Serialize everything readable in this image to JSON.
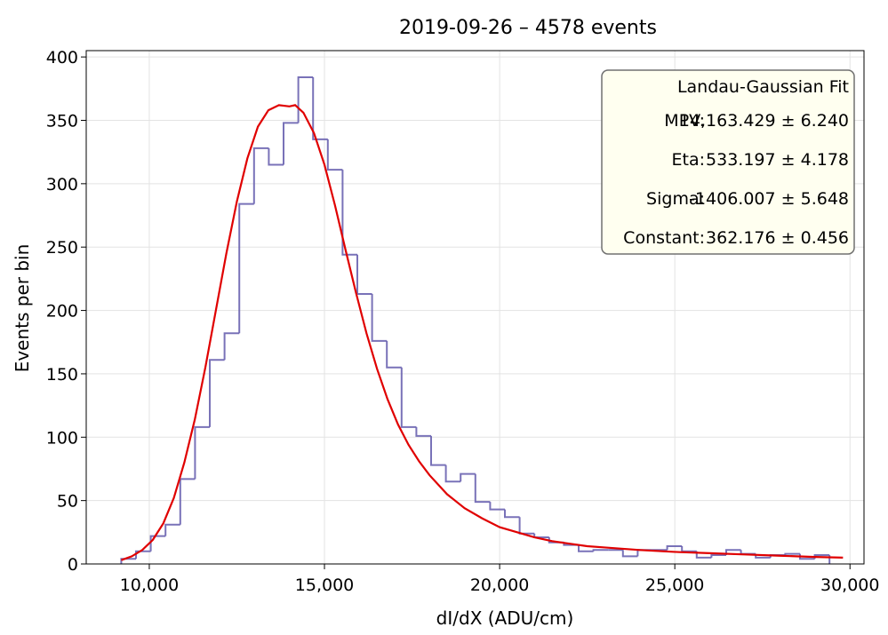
{
  "chart_data": {
    "type": "histogram",
    "title": "2019-09-26 – 4578 events",
    "xlabel": "dI/dX (ADU/cm)",
    "ylabel": "Events per bin",
    "xlim": [
      8200,
      30400
    ],
    "ylim": [
      0,
      405
    ],
    "x_ticks": [
      10000,
      15000,
      20000,
      25000,
      30000
    ],
    "x_tick_labels": [
      "10,000",
      "15,000",
      "20,000",
      "25,000",
      "30,000"
    ],
    "y_ticks": [
      0,
      50,
      100,
      150,
      200,
      250,
      300,
      350,
      400
    ],
    "y_tick_labels": [
      "0",
      "50",
      "100",
      "150",
      "200",
      "250",
      "300",
      "350",
      "400"
    ],
    "grid": true,
    "histogram": {
      "name": "data",
      "color": "#6a63b0",
      "bin_start": 9200,
      "bin_width": 421.15,
      "counts": [
        4,
        10,
        22,
        31,
        67,
        108,
        161,
        182,
        284,
        328,
        315,
        348,
        384,
        335,
        311,
        244,
        213,
        176,
        155,
        108,
        101,
        78,
        65,
        71,
        49,
        43,
        37,
        24,
        21,
        17,
        15,
        10,
        11,
        11,
        6,
        11,
        11,
        14,
        10,
        5,
        7,
        11,
        8,
        5,
        7,
        8,
        4,
        7
      ]
    },
    "fit_curve": {
      "name": "Landau-Gaussian Fit",
      "color": "#e00000",
      "x": [
        9200,
        9500,
        9800,
        10100,
        10400,
        10700,
        11000,
        11300,
        11600,
        11900,
        12200,
        12500,
        12800,
        13100,
        13400,
        13700,
        14000,
        14163,
        14400,
        14700,
        15000,
        15300,
        15600,
        15900,
        16200,
        16500,
        16800,
        17100,
        17400,
        17700,
        18000,
        18500,
        19000,
        19500,
        20000,
        20500,
        21000,
        21500,
        22000,
        22500,
        23000,
        24000,
        25000,
        26000,
        27000,
        28000,
        29000,
        29800
      ],
      "y": [
        3,
        6,
        11,
        19,
        32,
        52,
        80,
        114,
        155,
        200,
        245,
        286,
        320,
        345,
        358,
        362,
        361,
        362,
        356,
        340,
        315,
        283,
        248,
        214,
        182,
        154,
        130,
        110,
        94,
        81,
        70,
        55,
        44,
        36,
        29,
        25,
        21,
        18,
        16,
        14,
        13,
        11,
        9.5,
        8.5,
        7.5,
        6.5,
        5.5,
        5
      ]
    },
    "legend": {
      "placement": "top-right",
      "title": "Landau-Gaussian Fit",
      "rows": [
        {
          "label": "MPV:",
          "value": "14,163.429 ± 6.240"
        },
        {
          "label": "Eta:",
          "value": "533.197 ± 4.178"
        },
        {
          "label": "Sigma:",
          "value": "-1406.007 ± 5.648"
        },
        {
          "label": "Constant:",
          "value": "362.176 ± 0.456"
        }
      ]
    }
  }
}
